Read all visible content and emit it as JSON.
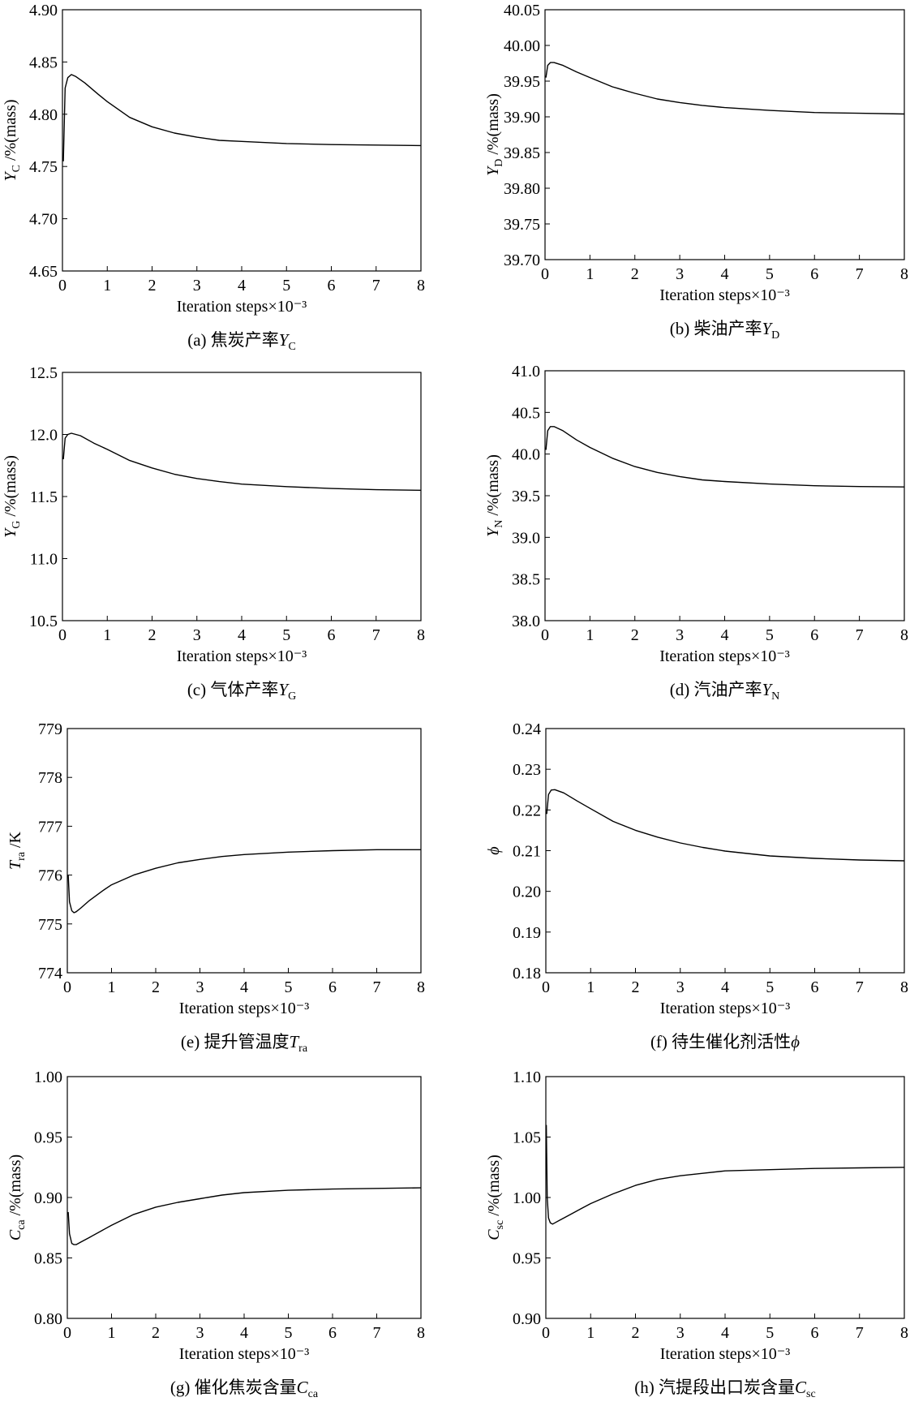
{
  "chart_data": [
    {
      "type": "line",
      "panel": "a",
      "caption": {
        "prefix": "(a) 焦炭产率",
        "sym": "Y",
        "sub": "C"
      },
      "ylabel": {
        "sym": "Y",
        "sub": "C",
        "unit": "/%(mass)"
      },
      "xlabel": "Iteration steps×10⁻³",
      "xlim": [
        0,
        8
      ],
      "ylim": [
        4.65,
        4.9
      ],
      "xticks": [
        0,
        1,
        2,
        3,
        4,
        5,
        6,
        7,
        8
      ],
      "yticks": [
        "4.65",
        "4.70",
        "4.75",
        "4.80",
        "4.85",
        "4.90"
      ],
      "series": [
        {
          "x": [
            0.02,
            0.06,
            0.12,
            0.2,
            0.3,
            0.5,
            0.8,
            1.0,
            1.5,
            2.0,
            2.5,
            3.0,
            3.5,
            4.0,
            5.0,
            6.0,
            7.0,
            8.0
          ],
          "y": [
            4.755,
            4.825,
            4.835,
            4.838,
            4.836,
            4.83,
            4.819,
            4.812,
            4.797,
            4.788,
            4.782,
            4.778,
            4.775,
            4.774,
            4.772,
            4.771,
            4.7705,
            4.77
          ]
        }
      ]
    },
    {
      "type": "line",
      "panel": "b",
      "caption": {
        "prefix": "(b) 柴油产率",
        "sym": "Y",
        "sub": "D"
      },
      "ylabel": {
        "sym": "Y",
        "sub": "D",
        "unit": "/%(mass)"
      },
      "xlabel": "Iteration steps×10⁻³",
      "xlim": [
        0,
        8
      ],
      "ylim": [
        39.7,
        40.05
      ],
      "xticks": [
        0,
        1,
        2,
        3,
        4,
        5,
        6,
        7,
        8
      ],
      "yticks": [
        "39.70",
        "39.75",
        "39.80",
        "39.85",
        "39.90",
        "39.95",
        "40.00",
        "40.05"
      ],
      "series": [
        {
          "x": [
            0.02,
            0.06,
            0.12,
            0.2,
            0.4,
            0.7,
            1.0,
            1.5,
            2.0,
            2.5,
            3.0,
            3.5,
            4.0,
            5.0,
            6.0,
            7.0,
            8.0
          ],
          "y": [
            39.955,
            39.972,
            39.976,
            39.976,
            39.972,
            39.963,
            39.955,
            39.942,
            39.933,
            39.925,
            39.92,
            39.916,
            39.913,
            39.909,
            39.906,
            39.905,
            39.904
          ]
        }
      ]
    },
    {
      "type": "line",
      "panel": "c",
      "caption": {
        "prefix": "(c) 气体产率",
        "sym": "Y",
        "sub": "G"
      },
      "ylabel": {
        "sym": "Y",
        "sub": "G",
        "unit": "/%(mass)"
      },
      "xlabel": "Iteration steps×10⁻³",
      "xlim": [
        0,
        8
      ],
      "ylim": [
        10.5,
        12.5
      ],
      "xticks": [
        0,
        1,
        2,
        3,
        4,
        5,
        6,
        7,
        8
      ],
      "yticks": [
        "10.5",
        "11.0",
        "11.5",
        "12.0",
        "12.5"
      ],
      "series": [
        {
          "x": [
            0.02,
            0.06,
            0.12,
            0.2,
            0.4,
            0.7,
            1.0,
            1.5,
            2.0,
            2.5,
            3.0,
            3.5,
            4.0,
            5.0,
            6.0,
            7.0,
            8.0
          ],
          "y": [
            11.8,
            11.97,
            12.0,
            12.01,
            11.99,
            11.93,
            11.88,
            11.79,
            11.73,
            11.68,
            11.645,
            11.62,
            11.6,
            11.58,
            11.565,
            11.555,
            11.55
          ]
        }
      ]
    },
    {
      "type": "line",
      "panel": "d",
      "caption": {
        "prefix": "(d) 汽油产率",
        "sym": "Y",
        "sub": "N"
      },
      "ylabel": {
        "sym": "Y",
        "sub": "N",
        "unit": "/%(mass)"
      },
      "xlabel": "Iteration steps×10⁻³",
      "xlim": [
        0,
        8
      ],
      "ylim": [
        38.0,
        41.0
      ],
      "xticks": [
        0,
        1,
        2,
        3,
        4,
        5,
        6,
        7,
        8
      ],
      "yticks": [
        "38.0",
        "38.5",
        "39.0",
        "39.5",
        "40.0",
        "40.5",
        "41.0"
      ],
      "series": [
        {
          "x": [
            0.02,
            0.06,
            0.12,
            0.2,
            0.4,
            0.7,
            1.0,
            1.5,
            2.0,
            2.5,
            3.0,
            3.5,
            4.0,
            5.0,
            6.0,
            7.0,
            8.0
          ],
          "y": [
            40.05,
            40.28,
            40.33,
            40.33,
            40.28,
            40.17,
            40.08,
            39.95,
            39.85,
            39.78,
            39.73,
            39.69,
            39.67,
            39.64,
            39.62,
            39.61,
            39.605
          ]
        }
      ]
    },
    {
      "type": "line",
      "panel": "e",
      "caption": {
        "prefix": "(e) 提升管温度",
        "sym": "T",
        "sub": "ra"
      },
      "ylabel": {
        "sym": "T",
        "sub": "ra",
        "unit": "/K"
      },
      "xlabel": "Iteration steps×10⁻³",
      "xlim": [
        0,
        8
      ],
      "ylim": [
        774,
        779
      ],
      "xticks": [
        0,
        1,
        2,
        3,
        4,
        5,
        6,
        7,
        8
      ],
      "yticks": [
        "774",
        "775",
        "776",
        "777",
        "778",
        "779"
      ],
      "series": [
        {
          "x": [
            0.02,
            0.05,
            0.1,
            0.15,
            0.2,
            0.3,
            0.5,
            0.8,
            1.0,
            1.5,
            2.0,
            2.5,
            3.0,
            3.5,
            4.0,
            5.0,
            6.0,
            7.0,
            8.0
          ],
          "y": [
            776.0,
            775.45,
            775.27,
            775.23,
            775.25,
            775.32,
            775.48,
            775.68,
            775.8,
            776.0,
            776.14,
            776.25,
            776.32,
            776.38,
            776.42,
            776.47,
            776.5,
            776.52,
            776.52
          ]
        }
      ]
    },
    {
      "type": "line",
      "panel": "f",
      "caption": {
        "prefix": "(f) 待生催化剂活性",
        "sym": "ϕ",
        "sub": ""
      },
      "ylabel": {
        "sym": "ϕ",
        "sub": "",
        "unit": ""
      },
      "xlabel": "Iteration steps×10⁻³",
      "xlim": [
        0,
        8
      ],
      "ylim": [
        0.18,
        0.24
      ],
      "xticks": [
        0,
        1,
        2,
        3,
        4,
        5,
        6,
        7,
        8
      ],
      "yticks": [
        "0.18",
        "0.19",
        "0.20",
        "0.21",
        "0.22",
        "0.23",
        "0.24"
      ],
      "series": [
        {
          "x": [
            0.02,
            0.06,
            0.12,
            0.2,
            0.4,
            0.7,
            1.0,
            1.5,
            2.0,
            2.5,
            3.0,
            3.5,
            4.0,
            5.0,
            6.0,
            7.0,
            8.0
          ],
          "y": [
            0.219,
            0.2238,
            0.2249,
            0.225,
            0.2242,
            0.2222,
            0.2203,
            0.2172,
            0.215,
            0.2133,
            0.2119,
            0.2108,
            0.2099,
            0.2087,
            0.2081,
            0.2077,
            0.2075
          ]
        }
      ]
    },
    {
      "type": "line",
      "panel": "g",
      "caption": {
        "prefix": "(g) 催化焦炭含量",
        "sym": "C",
        "sub": "ca"
      },
      "ylabel": {
        "sym": "C",
        "sub": "ca",
        "unit": "/%(mass)"
      },
      "xlabel": "Iteration steps×10⁻³",
      "xlim": [
        0,
        8
      ],
      "ylim": [
        0.8,
        1.0
      ],
      "xticks": [
        0,
        1,
        2,
        3,
        4,
        5,
        6,
        7,
        8
      ],
      "yticks": [
        "0.80",
        "0.85",
        "0.90",
        "0.95",
        "1.00"
      ],
      "series": [
        {
          "x": [
            0.02,
            0.05,
            0.1,
            0.15,
            0.2,
            0.3,
            0.5,
            0.8,
            1.0,
            1.5,
            2.0,
            2.5,
            3.0,
            3.5,
            4.0,
            5.0,
            6.0,
            7.0,
            8.0
          ],
          "y": [
            0.888,
            0.87,
            0.862,
            0.861,
            0.861,
            0.863,
            0.867,
            0.873,
            0.877,
            0.886,
            0.892,
            0.896,
            0.899,
            0.902,
            0.904,
            0.906,
            0.907,
            0.9075,
            0.908
          ]
        }
      ]
    },
    {
      "type": "line",
      "panel": "h",
      "caption": {
        "prefix": "(h) 汽提段出口炭含量",
        "sym": "C",
        "sub": "sc"
      },
      "ylabel": {
        "sym": "C",
        "sub": "sc",
        "unit": "/%(mass)"
      },
      "xlabel": "Iteration steps×10⁻³",
      "xlim": [
        0,
        8
      ],
      "ylim": [
        0.9,
        1.1
      ],
      "xticks": [
        0,
        1,
        2,
        3,
        4,
        5,
        6,
        7,
        8
      ],
      "yticks": [
        "0.90",
        "0.95",
        "1.00",
        "1.05",
        "1.10"
      ],
      "series": [
        {
          "x": [
            0.01,
            0.03,
            0.06,
            0.1,
            0.15,
            0.2,
            0.3,
            0.5,
            0.8,
            1.0,
            1.5,
            2.0,
            2.5,
            3.0,
            3.5,
            4.0,
            5.0,
            6.0,
            7.0,
            8.0
          ],
          "y": [
            1.06,
            1.0,
            0.983,
            0.979,
            0.978,
            0.979,
            0.981,
            0.985,
            0.991,
            0.995,
            1.003,
            1.01,
            1.015,
            1.018,
            1.02,
            1.022,
            1.023,
            1.024,
            1.0245,
            1.025
          ]
        }
      ]
    }
  ]
}
